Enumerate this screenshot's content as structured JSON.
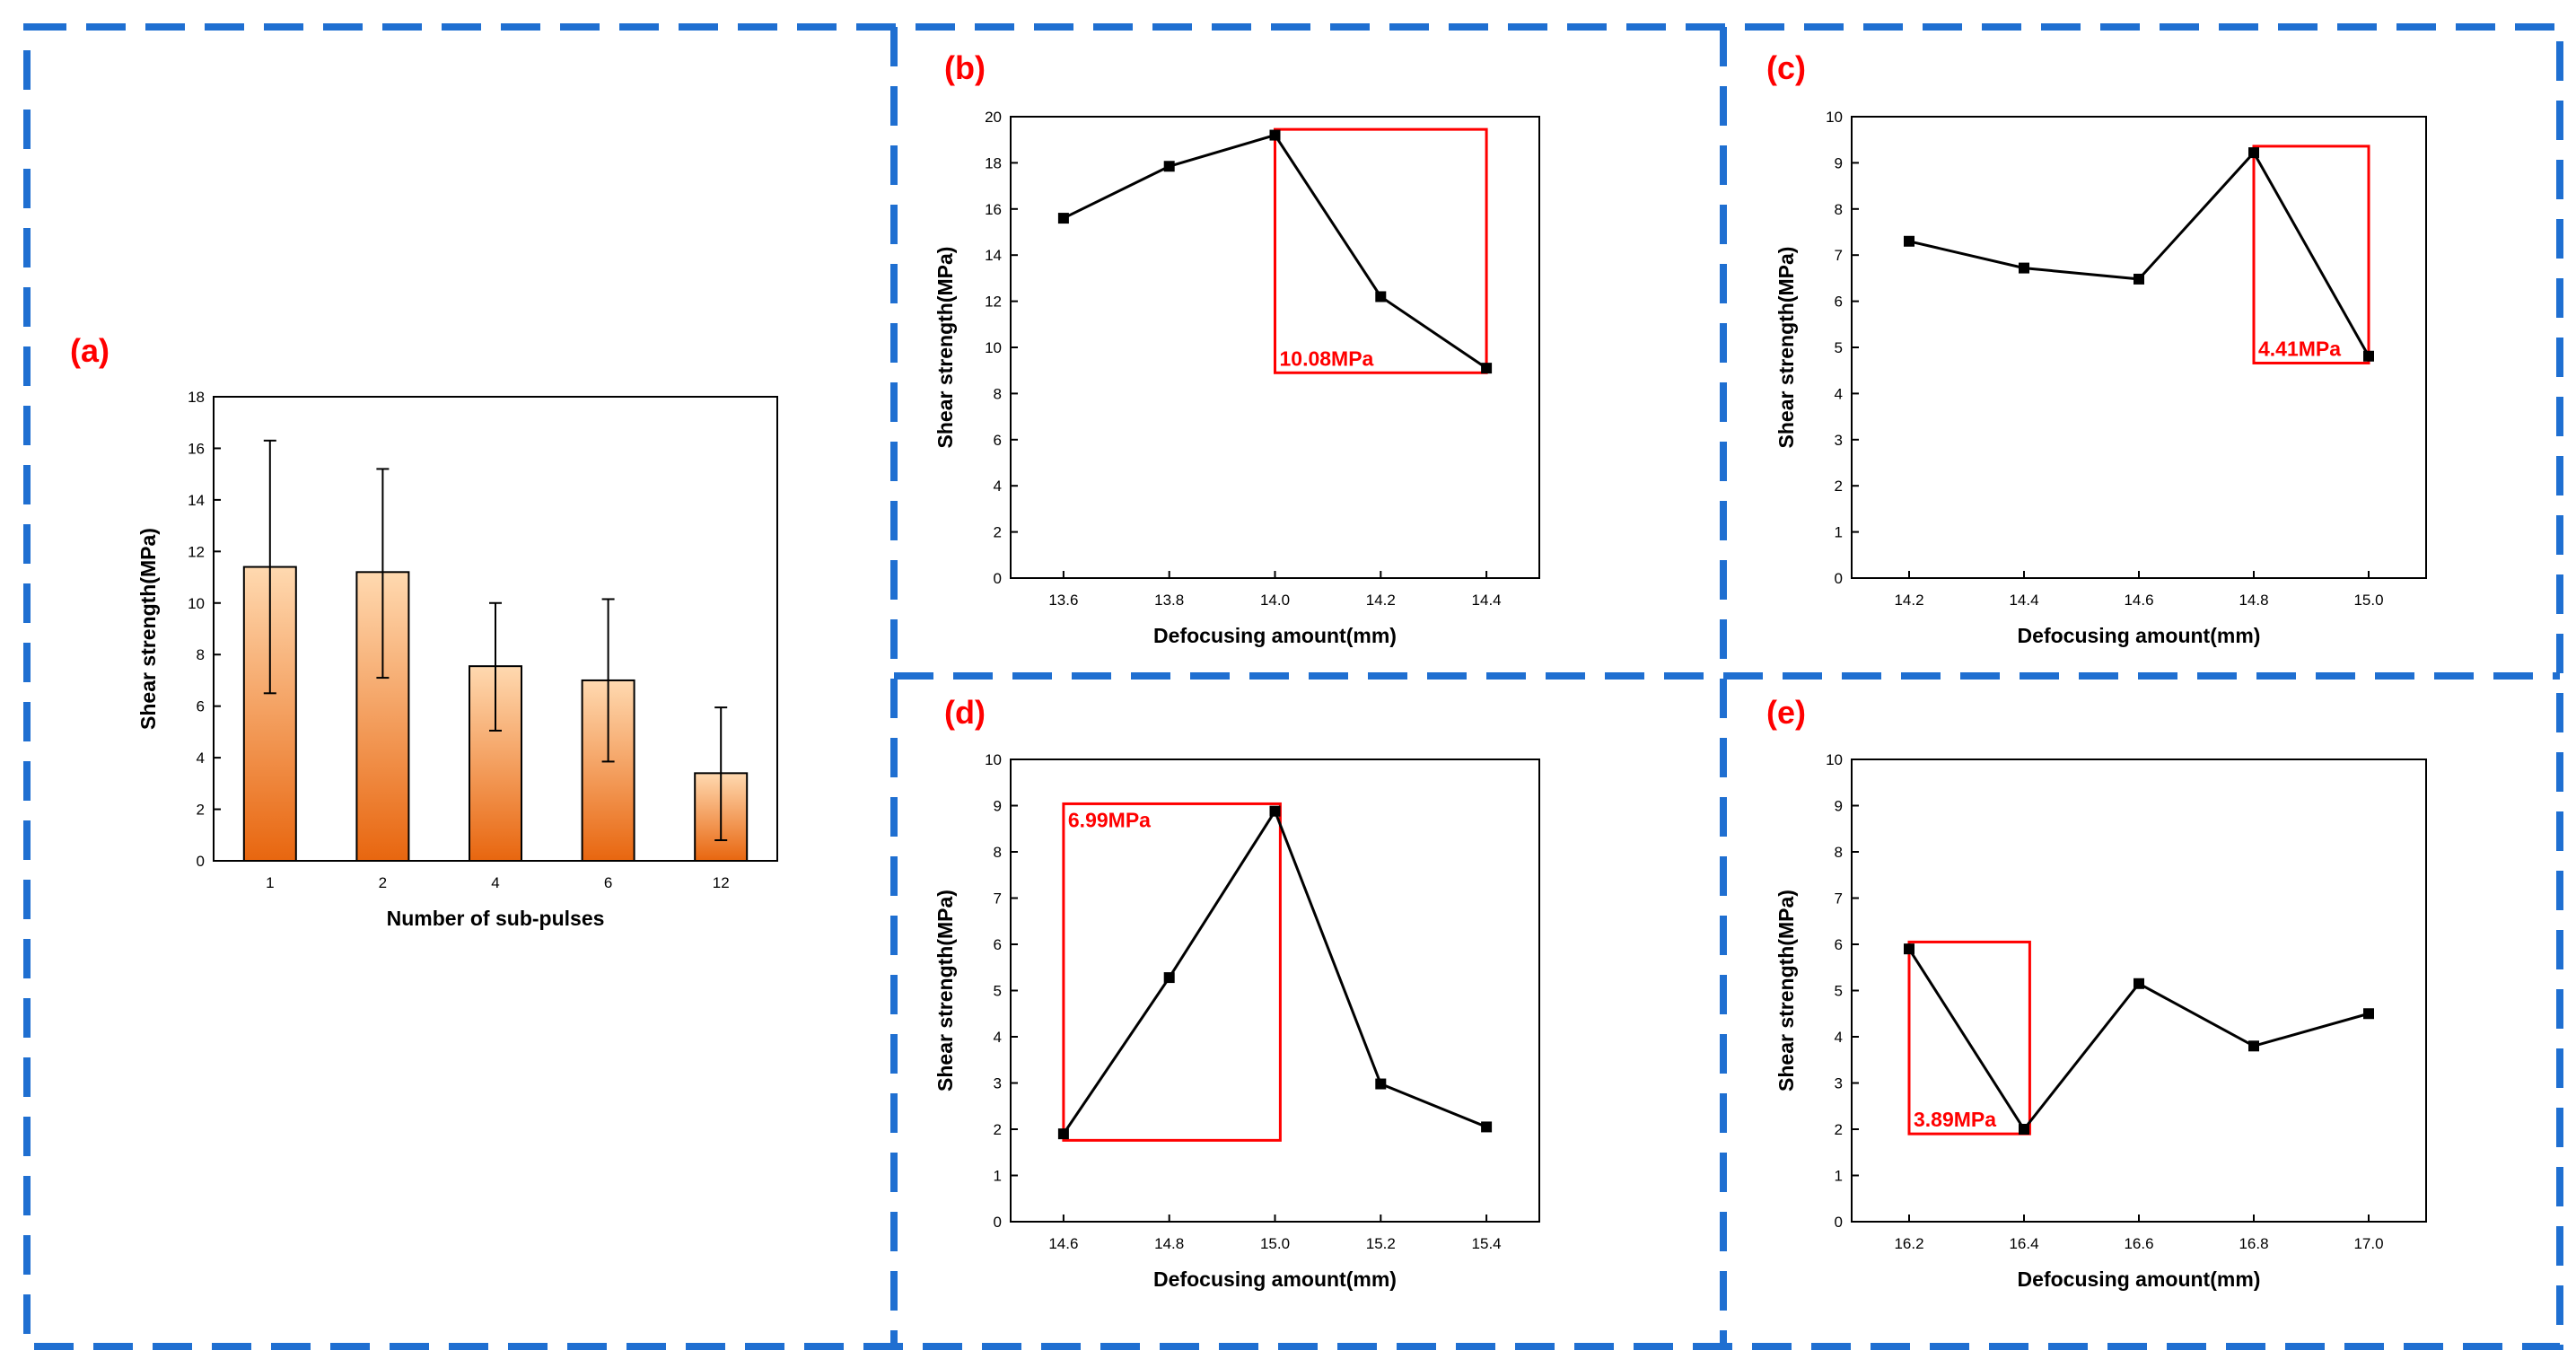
{
  "figure": {
    "divider_color": "#1f6fd1",
    "label_color": "#ff0000",
    "line_color": "#000000",
    "highlight_color": "#ff0000",
    "bar_gradient_top": "#ffd9b0",
    "bar_gradient_bottom": "#e8660f"
  },
  "chart_data": [
    {
      "id": "a",
      "panel_label": "(a)",
      "type": "bar",
      "categories": [
        "1",
        "2",
        "4",
        "6",
        "12"
      ],
      "values": [
        11.4,
        11.2,
        7.55,
        7.0,
        3.4
      ],
      "error_high": [
        16.3,
        15.2,
        10.0,
        10.15,
        5.95
      ],
      "error_low": [
        6.5,
        7.1,
        5.05,
        3.85,
        0.8
      ],
      "xlabel": "Number of sub-pulses",
      "ylabel": "Shear strength(MPa)",
      "ylim": [
        0,
        18
      ],
      "yticks": [
        0,
        2,
        4,
        6,
        8,
        10,
        12,
        14,
        16,
        18
      ]
    },
    {
      "id": "b",
      "panel_label": "(b)",
      "type": "line",
      "x": [
        13.6,
        13.8,
        14.0,
        14.2,
        14.4
      ],
      "y": [
        15.6,
        17.85,
        19.2,
        12.2,
        9.1
      ],
      "xlim": [
        13.5,
        14.5
      ],
      "xticks": [
        "13.6",
        "13.8",
        "14.0",
        "14.2",
        "14.4"
      ],
      "ylim": [
        0,
        20
      ],
      "yticks": [
        0,
        2,
        4,
        6,
        8,
        10,
        12,
        14,
        16,
        18,
        20
      ],
      "xlabel": "Defocusing amount(mm)",
      "ylabel": "Shear strength(MPa)",
      "highlight": {
        "x_range": [
          14.0,
          14.4
        ],
        "y_range": [
          8.9,
          19.45
        ],
        "label": "10.08MPa",
        "label_anchor": "bottom-left"
      }
    },
    {
      "id": "c",
      "panel_label": "(c)",
      "type": "line",
      "x": [
        14.2,
        14.4,
        14.6,
        14.8,
        15.0
      ],
      "y": [
        7.3,
        6.72,
        6.48,
        9.22,
        4.81
      ],
      "xlim": [
        14.1,
        15.1
      ],
      "xticks": [
        "14.2",
        "14.4",
        "14.6",
        "14.8",
        "15.0"
      ],
      "ylim": [
        0,
        10
      ],
      "yticks": [
        0,
        1,
        2,
        3,
        4,
        5,
        6,
        7,
        8,
        9,
        10
      ],
      "xlabel": "Defocusing amount(mm)",
      "ylabel": "Shear strength(MPa)",
      "highlight": {
        "x_range": [
          14.8,
          15.0
        ],
        "y_range": [
          4.66,
          9.36
        ],
        "label": "4.41MPa",
        "label_anchor": "bottom-left"
      }
    },
    {
      "id": "d",
      "panel_label": "(d)",
      "type": "line",
      "x": [
        14.6,
        14.8,
        15.0,
        15.2,
        15.4
      ],
      "y": [
        1.9,
        5.28,
        8.88,
        2.98,
        2.05
      ],
      "xlim": [
        14.5,
        15.5
      ],
      "xticks": [
        "14.6",
        "14.8",
        "15.0",
        "15.2",
        "15.4"
      ],
      "ylim": [
        0,
        10
      ],
      "yticks": [
        0,
        1,
        2,
        3,
        4,
        5,
        6,
        7,
        8,
        9,
        10
      ],
      "xlabel": "Defocusing amount(mm)",
      "ylabel": "Shear strength(MPa)",
      "highlight": {
        "x_range": [
          14.6,
          15.01
        ],
        "y_range": [
          1.76,
          9.04
        ],
        "label": "6.99MPa",
        "label_anchor": "top-left"
      }
    },
    {
      "id": "e",
      "panel_label": "(e)",
      "type": "line",
      "x": [
        16.2,
        16.4,
        16.6,
        16.8,
        17.0
      ],
      "y": [
        5.9,
        2.0,
        5.15,
        3.8,
        4.5
      ],
      "xlim": [
        16.1,
        17.1
      ],
      "xticks": [
        "16.2",
        "16.4",
        "16.6",
        "16.8",
        "17.0"
      ],
      "ylim": [
        0,
        10
      ],
      "yticks": [
        0,
        1,
        2,
        3,
        4,
        5,
        6,
        7,
        8,
        9,
        10
      ],
      "xlabel": "Defocusing amount(mm)",
      "ylabel": "Shear strength(MPa)",
      "highlight": {
        "x_range": [
          16.2,
          16.41
        ],
        "y_range": [
          1.9,
          6.05
        ],
        "label": "3.89MPa",
        "label_anchor": "bottom-left"
      }
    }
  ]
}
